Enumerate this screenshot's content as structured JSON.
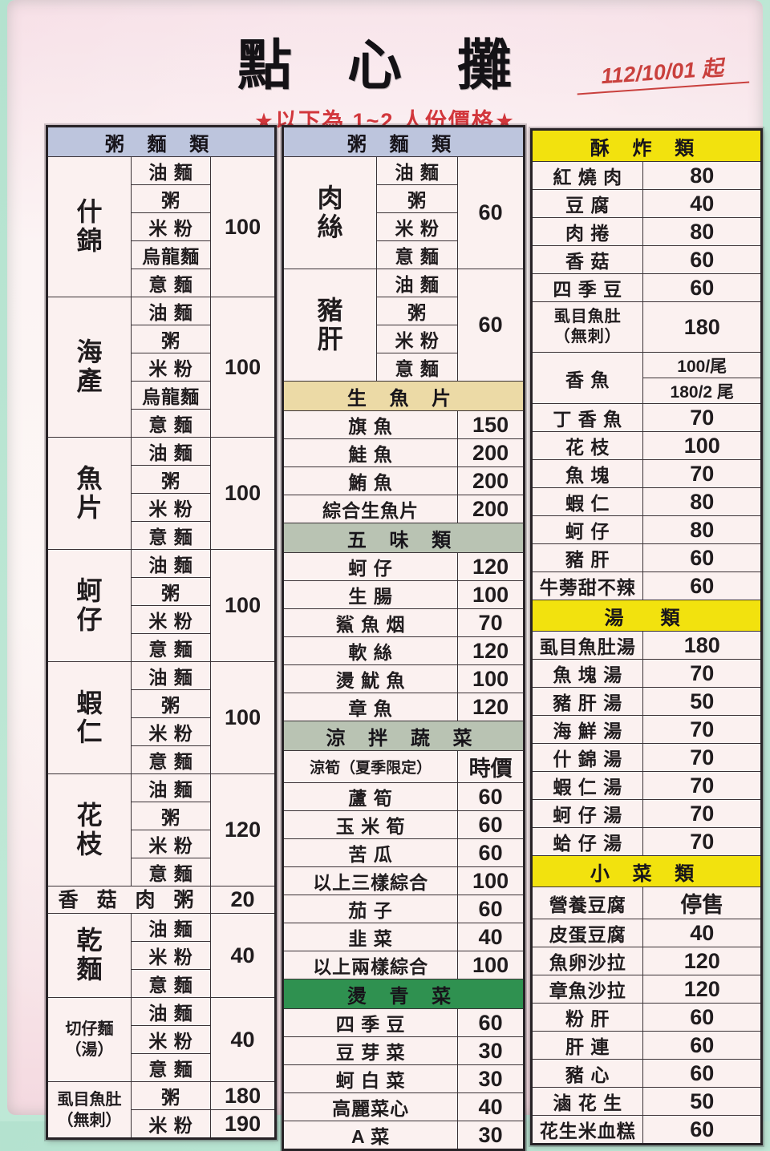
{
  "page": {
    "title": "點 心 攤",
    "date_note": "112/10/01 起",
    "subtitle": "★以下為 1~2 人份價格★"
  },
  "colors": {
    "background_mint": "#b9e6d4",
    "paper_pink": "#f8e3e8",
    "header_blue": "#bdc5dd",
    "header_yellow": "#f2e20e",
    "header_tan": "#ecdaa6",
    "header_sage": "#b9c3b3",
    "header_green": "#2f9150",
    "accent_red": "#d2373c",
    "border_dark": "#3a3236"
  },
  "left_table": {
    "header": "粥 麵 類",
    "groups": [
      {
        "name_lines": [
          "什",
          "錦"
        ],
        "items": [
          "油 麵",
          "粥",
          "米 粉",
          "烏龍麵",
          "意 麵"
        ],
        "price": "100"
      },
      {
        "name_lines": [
          "海",
          "產"
        ],
        "items": [
          "油 麵",
          "粥",
          "米 粉",
          "烏龍麵",
          "意 麵"
        ],
        "price": "100"
      },
      {
        "name_lines": [
          "魚",
          "片"
        ],
        "items": [
          "油 麵",
          "粥",
          "米 粉",
          "意 麵"
        ],
        "price": "100"
      },
      {
        "name_lines": [
          "蚵",
          "仔"
        ],
        "items": [
          "油 麵",
          "粥",
          "米 粉",
          "意 麵"
        ],
        "price": "100"
      },
      {
        "name_lines": [
          "蝦",
          "仁"
        ],
        "items": [
          "油 麵",
          "粥",
          "米 粉",
          "意 麵"
        ],
        "price": "100"
      },
      {
        "name_lines": [
          "花",
          "枝"
        ],
        "items": [
          "油 麵",
          "粥",
          "米 粉",
          "意 麵"
        ],
        "price": "120"
      },
      {
        "name_lines": [
          "香 菇 肉 粥"
        ],
        "single": true,
        "price": "20"
      },
      {
        "name_lines": [
          "乾",
          "麵"
        ],
        "items": [
          "油 麵",
          "米 粉",
          "意 麵"
        ],
        "price": "40"
      },
      {
        "name_lines": [
          "切仔麵",
          "（湯）"
        ],
        "small_name": true,
        "items": [
          "油 麵",
          "米 粉",
          "意 麵"
        ],
        "price": "40"
      },
      {
        "name_lines": [
          "虱目魚肚",
          "（無刺）"
        ],
        "small_name": true,
        "item_prices": [
          {
            "item": "粥",
            "price": "180"
          },
          {
            "item": "米 粉",
            "price": "190"
          }
        ]
      }
    ]
  },
  "middle_table": {
    "header": "粥 麵 類",
    "groups": [
      {
        "name_lines": [
          "肉",
          "絲"
        ],
        "items": [
          "油 麵",
          "粥",
          "米 粉",
          "意 麵"
        ],
        "price": "60"
      },
      {
        "name_lines": [
          "豬",
          "肝"
        ],
        "items": [
          "油 麵",
          "粥",
          "米 粉",
          "意 麵"
        ],
        "price": "60"
      }
    ],
    "sections": [
      {
        "header": "生 魚 片",
        "style": "tan",
        "rows": [
          {
            "label": "旗 魚",
            "price": "150"
          },
          {
            "label": "鮭 魚",
            "price": "200"
          },
          {
            "label": "鮪 魚",
            "price": "200"
          },
          {
            "label": "綜合生魚片",
            "price": "200"
          }
        ]
      },
      {
        "header": "五 味 類",
        "style": "sage",
        "rows": [
          {
            "label": "蚵 仔",
            "price": "120"
          },
          {
            "label": "生 腸",
            "price": "100"
          },
          {
            "label": "鯊 魚 烟",
            "price": "70"
          },
          {
            "label": "軟 絲",
            "price": "120"
          },
          {
            "label": "燙 魷 魚",
            "price": "100"
          },
          {
            "label": "章 魚",
            "price": "120"
          }
        ]
      },
      {
        "header": "涼 拌 蔬 菜",
        "style": "sage",
        "rows": [
          {
            "label": "涼筍（夏季限定）",
            "small": true,
            "price": "時價"
          },
          {
            "label": "蘆 筍",
            "price": "60"
          },
          {
            "label": "玉 米 筍",
            "price": "60"
          },
          {
            "label": "苦 瓜",
            "price": "60"
          },
          {
            "label": "以上三樣綜合",
            "price": "100"
          },
          {
            "label": "茄 子",
            "price": "60"
          },
          {
            "label": "韭 菜",
            "price": "40"
          },
          {
            "label": "以上兩樣綜合",
            "price": "100"
          }
        ]
      },
      {
        "header": "燙 青 菜",
        "style": "green",
        "rows": [
          {
            "label": "四 季 豆",
            "price": "60"
          },
          {
            "label": "豆 芽 菜",
            "price": "30"
          },
          {
            "label": "蚵 白 菜",
            "price": "30"
          },
          {
            "label": "高麗菜心",
            "price": "40"
          },
          {
            "label": "A 菜",
            "price": "30"
          }
        ]
      }
    ]
  },
  "right_table": {
    "sections": [
      {
        "header": "酥 炸 類",
        "style": "yellow",
        "rows": [
          {
            "label": "紅 燒 肉",
            "price": "80"
          },
          {
            "label": "豆 腐",
            "price": "40"
          },
          {
            "label": "肉 捲",
            "price": "80"
          },
          {
            "label": "香 菇",
            "price": "60"
          },
          {
            "label": "四 季 豆",
            "price": "60"
          },
          {
            "label_lines": [
              "虱目魚肚",
              "（無刺）"
            ],
            "price": "180"
          },
          {
            "label": "香 魚",
            "prices": [
              "100/尾",
              "180/2 尾"
            ]
          },
          {
            "label": "丁 香 魚",
            "price": "70"
          },
          {
            "label": "花 枝",
            "price": "100"
          },
          {
            "label": "魚 塊",
            "price": "70"
          },
          {
            "label": "蝦 仁",
            "price": "80"
          },
          {
            "label": "蚵 仔",
            "price": "80"
          },
          {
            "label": "豬 肝",
            "price": "60"
          },
          {
            "label": "牛蒡甜不辣",
            "price": "60"
          }
        ]
      },
      {
        "header": "湯　類",
        "style": "yellow",
        "rows": [
          {
            "label": "虱目魚肚湯",
            "price": "180"
          },
          {
            "label": "魚 塊 湯",
            "price": "70"
          },
          {
            "label": "豬 肝 湯",
            "price": "50"
          },
          {
            "label": "海 鮮 湯",
            "price": "70"
          },
          {
            "label": "什 錦 湯",
            "price": "70"
          },
          {
            "label": "蝦 仁 湯",
            "price": "70"
          },
          {
            "label": "蚵 仔 湯",
            "price": "70"
          },
          {
            "label": "蛤 仔 湯",
            "price": "70"
          }
        ]
      },
      {
        "header": "小 菜 類",
        "style": "yellow",
        "rows": [
          {
            "label": "營養豆腐",
            "price": "停售"
          },
          {
            "label": "皮蛋豆腐",
            "price": "40"
          },
          {
            "label": "魚卵沙拉",
            "price": "120"
          },
          {
            "label": "章魚沙拉",
            "price": "120"
          },
          {
            "label": "粉 肝",
            "price": "60"
          },
          {
            "label": "肝 連",
            "price": "60"
          },
          {
            "label": "豬 心",
            "price": "60"
          },
          {
            "label": "滷 花 生",
            "price": "50"
          },
          {
            "label": "花生米血糕",
            "price": "60"
          }
        ]
      }
    ]
  }
}
